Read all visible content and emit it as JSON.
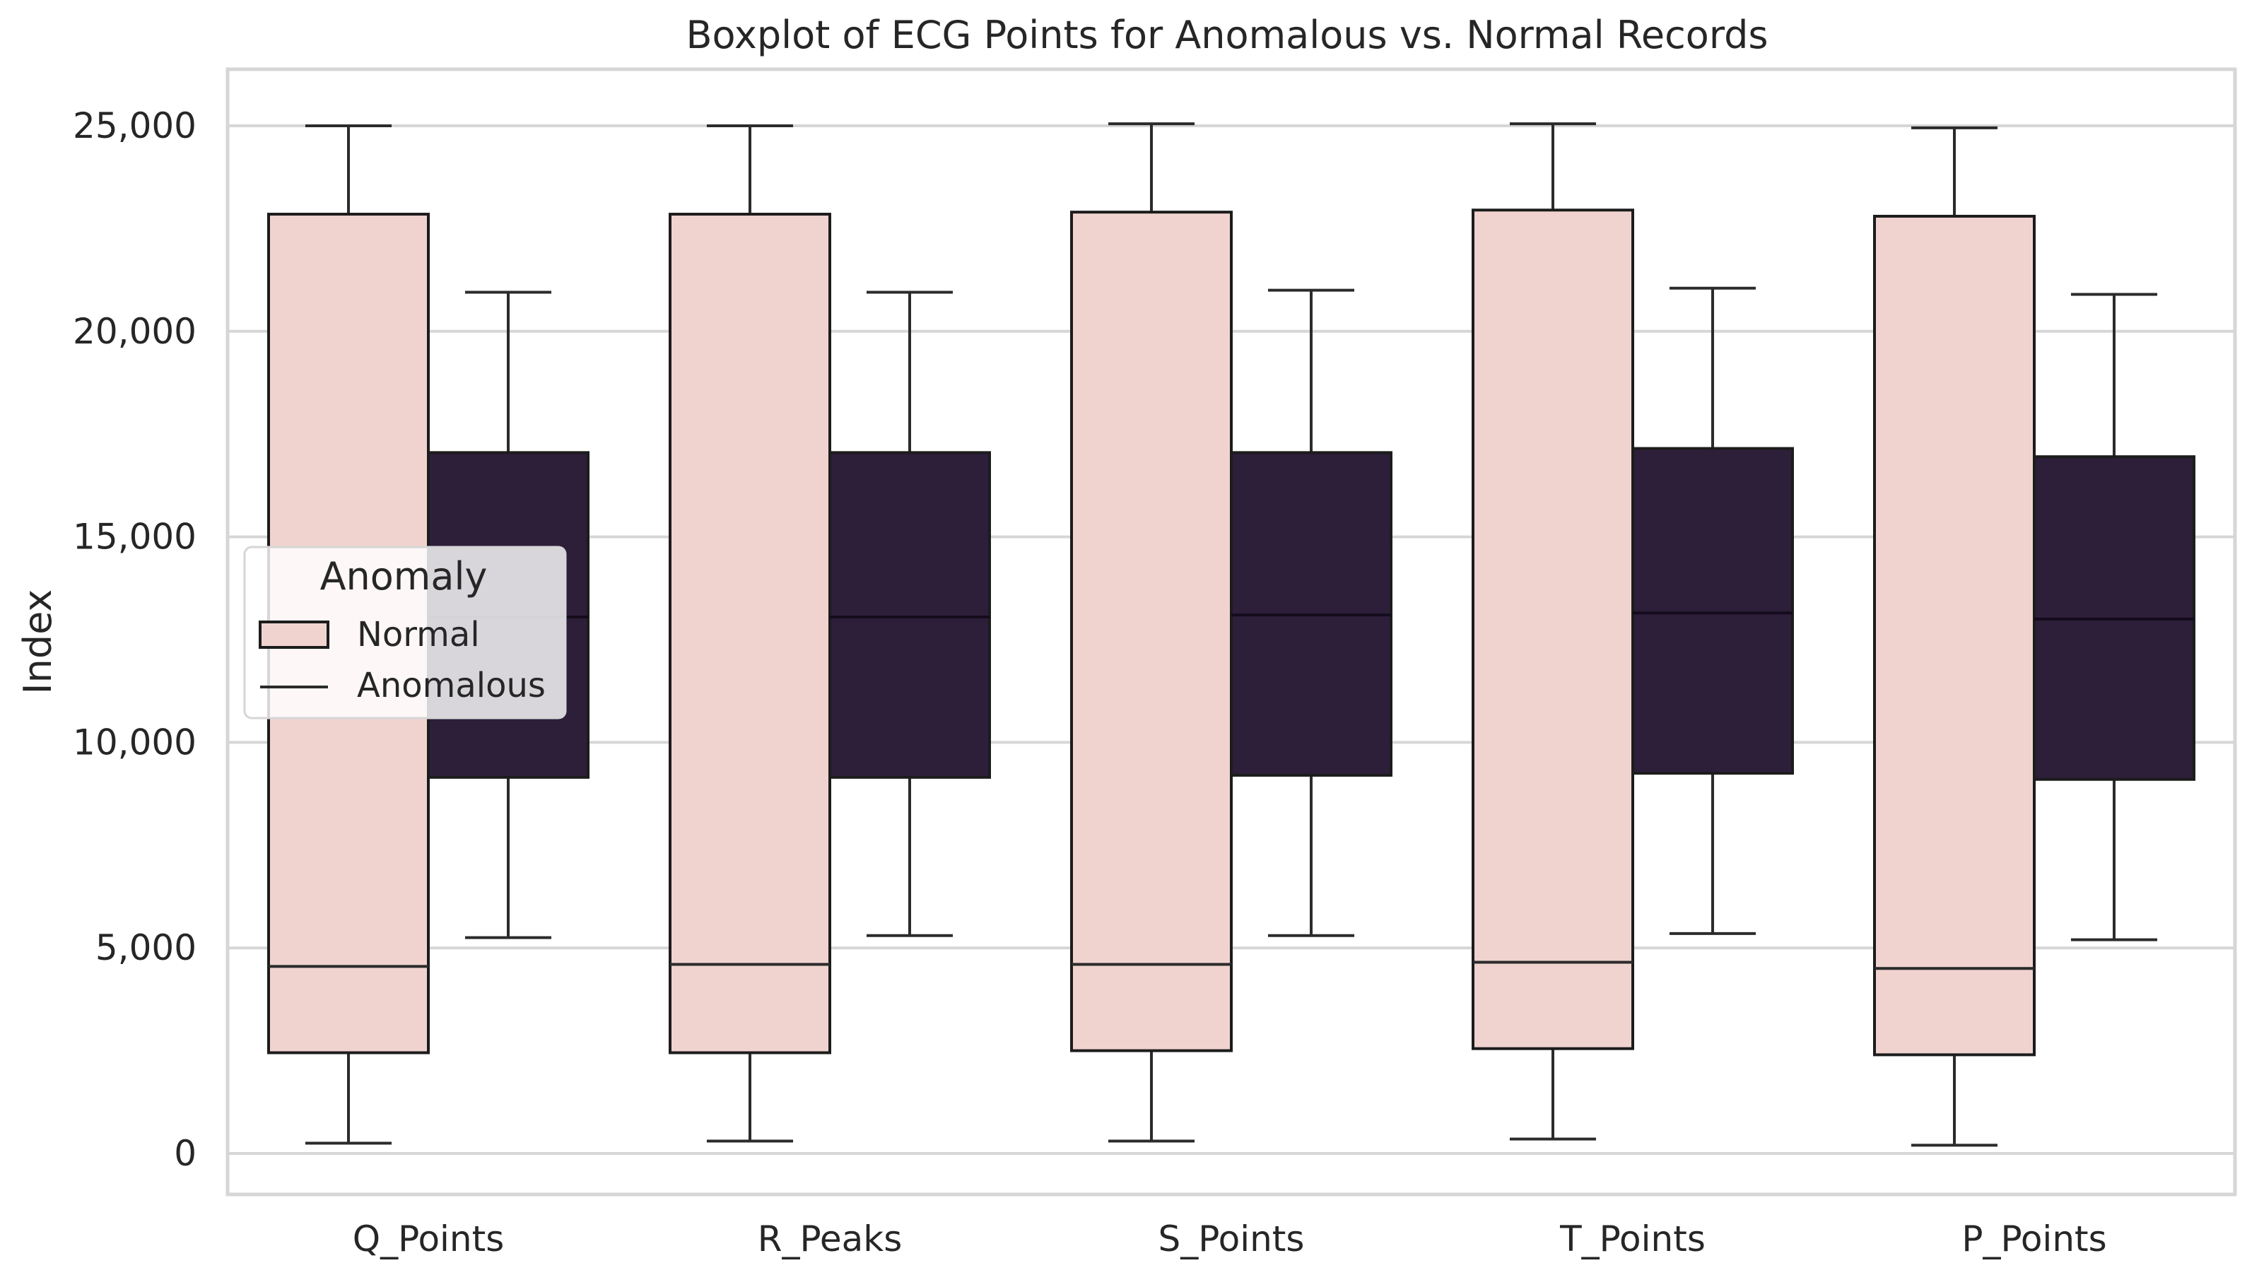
{
  "chart_data": {
    "type": "boxplot",
    "title": "Boxplot of ECG Points for Anomalous vs. Normal Records",
    "xlabel": "",
    "ylabel": "Index",
    "ylim": [
      -800,
      26500
    ],
    "yticks": [
      0,
      5000,
      10000,
      15000,
      20000,
      25000
    ],
    "ytick_labels": [
      "0",
      "5,000",
      "10,000",
      "15,000",
      "20,000",
      "25,000"
    ],
    "grid": true,
    "categories": [
      "Q_Points",
      "R_Peaks",
      "S_Points",
      "T_Points",
      "P_Points"
    ],
    "series": [
      {
        "name": "Normal",
        "color": "#f0d3cf",
        "boxes": [
          {
            "whislo": 250,
            "q1": 2450,
            "med": 4550,
            "q3": 22850,
            "whishi": 25000
          },
          {
            "whislo": 300,
            "q1": 2450,
            "med": 4600,
            "q3": 22850,
            "whishi": 25000
          },
          {
            "whislo": 300,
            "q1": 2500,
            "med": 4600,
            "q3": 22900,
            "whishi": 25050
          },
          {
            "whislo": 350,
            "q1": 2550,
            "med": 4650,
            "q3": 22950,
            "whishi": 25050
          },
          {
            "whislo": 200,
            "q1": 2400,
            "med": 4500,
            "q3": 22800,
            "whishi": 24950
          }
        ]
      },
      {
        "name": "Anomalous",
        "color": "#2d1e3a",
        "boxes": [
          {
            "whislo": 5250,
            "q1": 9150,
            "med": 13050,
            "q3": 17050,
            "whishi": 20950
          },
          {
            "whislo": 5300,
            "q1": 9150,
            "med": 13050,
            "q3": 17050,
            "whishi": 20950
          },
          {
            "whislo": 5300,
            "q1": 9200,
            "med": 13100,
            "q3": 17050,
            "whishi": 21000
          },
          {
            "whislo": 5350,
            "q1": 9250,
            "med": 13150,
            "q3": 17150,
            "whishi": 21050
          },
          {
            "whislo": 5200,
            "q1": 9100,
            "med": 13000,
            "q3": 16950,
            "whishi": 20900
          }
        ]
      }
    ],
    "legend": {
      "title": "Anomaly",
      "position": "center-left",
      "entries": [
        "Normal",
        "Anomalous"
      ]
    }
  }
}
